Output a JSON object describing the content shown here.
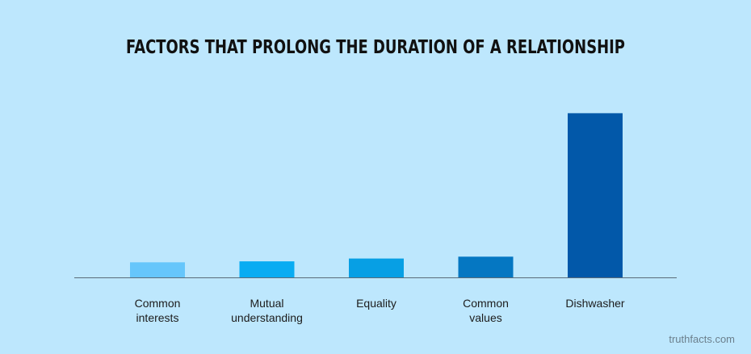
{
  "chart_data": {
    "type": "bar",
    "title": "FACTORS THAT PROLONG THE DURATION OF A RELATIONSHIP",
    "categories": [
      [
        "Common",
        "interests"
      ],
      [
        "Mutual",
        "understanding"
      ],
      [
        "Equality"
      ],
      [
        "Common",
        "values"
      ],
      [
        "Dishwasher"
      ]
    ],
    "values": [
      8,
      8.5,
      10,
      11,
      87
    ],
    "ylim": [
      0,
      100
    ],
    "grid": false,
    "legend": "none",
    "bar_colors": [
      "#66c6fb",
      "#09acf2",
      "#079fe4",
      "#0577c2",
      "#0258a9"
    ],
    "axis_color": "#5a6b78"
  },
  "credit": "truthfacts.com"
}
